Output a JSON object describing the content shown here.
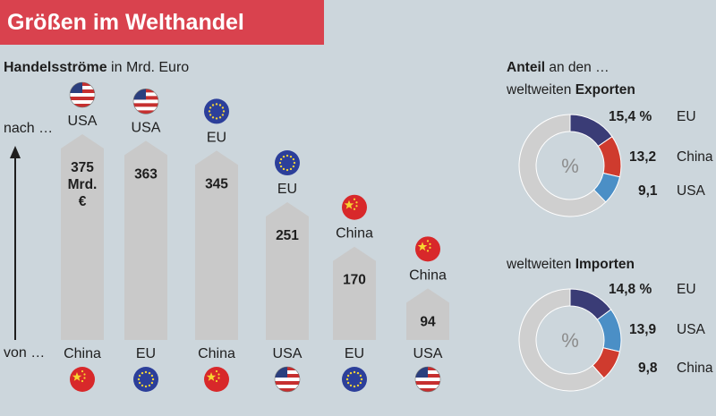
{
  "header": {
    "title": "Größen im Welthandel"
  },
  "flows": {
    "subtitle_bold": "Handelsströme",
    "subtitle_rest": " in Mrd. Euro",
    "to_label": "nach …",
    "from_label": "von …"
  },
  "shares": {
    "exports": {
      "title_bold": "Anteil",
      "title_line1_rest": " an den …",
      "title_line2": "weltweiten ",
      "title_line2_bold": "Exporten"
    },
    "imports": {
      "title_line2": "weltweiten ",
      "title_line2_bold": "Importen"
    }
  },
  "colors": {
    "banner": "#d9424e",
    "arrow_bar": "#c9c9c9",
    "eu": "#3a3c76",
    "china": "#cf3b2e",
    "usa": "#4b8fc6",
    "rest": "#cfcfcf"
  },
  "chart_data": [
    {
      "type": "bar",
      "title": "Handelsströme in Mrd. Euro",
      "categories": [
        "China → USA",
        "EU → USA",
        "China → EU",
        "USA → EU",
        "EU → China",
        "USA → China"
      ],
      "from": [
        "China",
        "EU",
        "China",
        "USA",
        "EU",
        "USA"
      ],
      "to": [
        "USA",
        "USA",
        "EU",
        "EU",
        "China",
        "China"
      ],
      "value_labels": [
        "375\nMrd.\n€",
        "363",
        "345",
        "251",
        "170",
        "94"
      ],
      "values": [
        375,
        363,
        345,
        251,
        170,
        94
      ],
      "ylim": [
        0,
        400
      ]
    },
    {
      "type": "pie",
      "title": "Anteil an den weltweiten Exporten",
      "labels": [
        "EU",
        "China",
        "USA"
      ],
      "value_labels": [
        "15,4 %",
        "13,2",
        "9,1"
      ],
      "values": [
        15.4,
        13.2,
        9.1
      ],
      "center_label": "%"
    },
    {
      "type": "pie",
      "title": "weltweiten Importen",
      "labels": [
        "EU",
        "USA",
        "China"
      ],
      "value_labels": [
        "14,8 %",
        "13,9",
        "9,8"
      ],
      "values": [
        14.8,
        13.9,
        9.8
      ],
      "center_label": "%"
    }
  ]
}
